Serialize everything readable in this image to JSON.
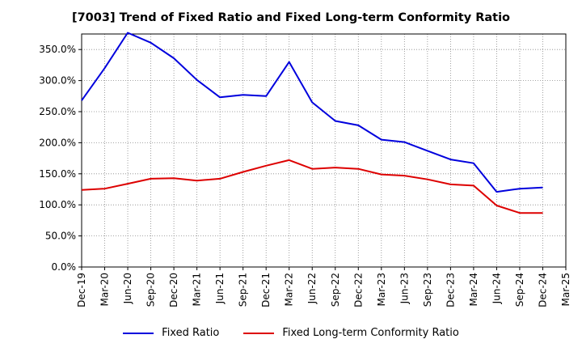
{
  "chart_data": {
    "type": "line",
    "title": "[7003]  Trend of Fixed Ratio and Fixed Long-term Conformity Ratio",
    "x": [
      "Dec-19",
      "Mar-20",
      "Jun-20",
      "Sep-20",
      "Dec-20",
      "Mar-21",
      "Jun-21",
      "Sep-21",
      "Dec-21",
      "Mar-22",
      "Jun-22",
      "Sep-22",
      "Dec-22",
      "Mar-23",
      "Jun-23",
      "Sep-23",
      "Dec-23",
      "Mar-24",
      "Jun-24",
      "Sep-24",
      "Dec-24",
      "Mar-25"
    ],
    "x_ticks": [
      "Dec-19",
      "Mar-20",
      "Jun-20",
      "Sep-20",
      "Dec-20",
      "Mar-21",
      "Jun-21",
      "Sep-21",
      "Dec-21",
      "Mar-22",
      "Jun-22",
      "Sep-22",
      "Dec-22",
      "Mar-23",
      "Jun-23",
      "Sep-23",
      "Dec-23",
      "Mar-24",
      "Jun-24",
      "Sep-24",
      "Dec-24",
      "Mar-25"
    ],
    "y_ticks": [
      "0.0%",
      "50.0%",
      "100.0%",
      "150.0%",
      "200.0%",
      "250.0%",
      "300.0%",
      "350.0%"
    ],
    "ylim": [
      0,
      375
    ],
    "y_unit": "%",
    "grid": true,
    "legend_position": "bottom",
    "series": [
      {
        "name": "Fixed Ratio",
        "color": "#0000dd",
        "values": [
          268,
          320,
          377,
          361,
          336,
          301,
          273,
          277,
          275,
          330,
          265,
          235,
          228,
          205,
          201,
          187,
          173,
          167,
          121,
          126,
          128,
          null
        ]
      },
      {
        "name": "Fixed Long-term Conformity Ratio",
        "color": "#dd0000",
        "values": [
          124,
          126,
          134,
          142,
          143,
          139,
          142,
          153,
          163,
          172,
          158,
          160,
          158,
          149,
          147,
          141,
          133,
          131,
          99,
          87,
          87,
          null
        ]
      }
    ]
  }
}
